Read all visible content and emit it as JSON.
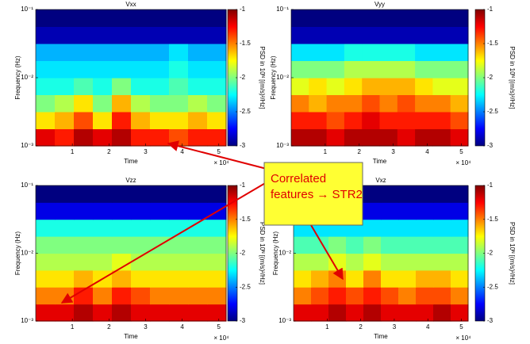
{
  "chart_data": [
    {
      "type": "heatmap",
      "title": "Vxx",
      "xlabel": "Time",
      "ylabel": "Frequency (Hz)",
      "x_multiplier": "× 10⁴",
      "xlim": [
        0,
        5.2
      ],
      "xticks": [
        1,
        2,
        3,
        4,
        5
      ],
      "log_y": true,
      "ylim": [
        0.001,
        0.1
      ],
      "yticks": [
        {
          "value": 0.001,
          "label": "10⁻³"
        },
        {
          "value": 0.01,
          "label": "10⁻²"
        },
        {
          "value": 0.1,
          "label": "10⁻¹"
        }
      ],
      "clim": [
        -3,
        -1
      ],
      "colorbar_ticks": [
        -3,
        -2.5,
        -2,
        -1.5,
        -1
      ],
      "colorbar_label": "PSD in 10ᴺ [(m/s)²/Hz]",
      "x": [
        0.26,
        0.78,
        1.3,
        1.82,
        2.34,
        2.86,
        3.38,
        3.9,
        4.42,
        4.94
      ],
      "y": [
        0.00133,
        0.00237,
        0.00422,
        0.0075,
        0.0133,
        0.0237,
        0.0422,
        0.075
      ],
      "z": [
        [
          -1.2,
          -1.3,
          -1.1,
          -1.2,
          -1.1,
          -1.3,
          -1.3,
          -1.4,
          -1.3,
          -1.3
        ],
        [
          -1.7,
          -1.6,
          -1.4,
          -1.7,
          -1.3,
          -1.6,
          -1.7,
          -1.7,
          -1.6,
          -1.7
        ],
        [
          -2.0,
          -1.9,
          -1.7,
          -2.0,
          -1.6,
          -1.9,
          -2.0,
          -2.0,
          -1.9,
          -2.0
        ],
        [
          -2.2,
          -2.2,
          -2.1,
          -2.2,
          -2.0,
          -2.2,
          -2.2,
          -2.1,
          -2.2,
          -2.2
        ],
        [
          -2.3,
          -2.3,
          -2.3,
          -2.3,
          -2.3,
          -2.3,
          -2.3,
          -2.2,
          -2.3,
          -2.3
        ],
        [
          -2.4,
          -2.4,
          -2.4,
          -2.4,
          -2.4,
          -2.4,
          -2.4,
          -2.3,
          -2.4,
          -2.4
        ],
        [
          -2.9,
          -2.9,
          -2.9,
          -2.9,
          -2.9,
          -2.9,
          -2.9,
          -2.9,
          -2.9,
          -2.9
        ],
        [
          -3,
          -3,
          -3,
          -3,
          -3,
          -3,
          -3,
          -3,
          -3,
          -3
        ]
      ]
    },
    {
      "type": "heatmap",
      "title": "Vyy",
      "xlabel": "Time",
      "ylabel": "Frequency (Hz)",
      "x_multiplier": "× 10⁴",
      "xlim": [
        0,
        5.2
      ],
      "xticks": [
        1,
        2,
        3,
        4,
        5
      ],
      "log_y": true,
      "ylim": [
        0.001,
        0.1
      ],
      "yticks": [
        {
          "value": 0.001,
          "label": "10⁻³"
        },
        {
          "value": 0.01,
          "label": "10⁻²"
        },
        {
          "value": 0.1,
          "label": "10⁻¹"
        }
      ],
      "clim": [
        -3,
        -1
      ],
      "colorbar_ticks": [
        -3,
        -2.5,
        -2,
        -1.5,
        -1
      ],
      "colorbar_label": "PSD in 10ᴺ [(m/s)²/Hz]",
      "x": [
        0.26,
        0.78,
        1.3,
        1.82,
        2.34,
        2.86,
        3.38,
        3.9,
        4.42,
        4.94
      ],
      "y": [
        0.00133,
        0.00237,
        0.00422,
        0.0075,
        0.0133,
        0.0237,
        0.0422,
        0.075
      ],
      "z": [
        [
          -1.1,
          -1.1,
          -1.2,
          -1.1,
          -1.1,
          -1.1,
          -1.2,
          -1.1,
          -1.1,
          -1.2
        ],
        [
          -1.3,
          -1.3,
          -1.4,
          -1.3,
          -1.2,
          -1.3,
          -1.3,
          -1.3,
          -1.3,
          -1.4
        ],
        [
          -1.5,
          -1.6,
          -1.5,
          -1.5,
          -1.4,
          -1.5,
          -1.4,
          -1.5,
          -1.5,
          -1.6
        ],
        [
          -1.8,
          -1.7,
          -1.8,
          -1.7,
          -1.6,
          -1.6,
          -1.6,
          -1.7,
          -1.8,
          -1.8
        ],
        [
          -2.0,
          -2.0,
          -2.0,
          -1.9,
          -1.9,
          -1.9,
          -1.9,
          -2.0,
          -2.0,
          -2.0
        ],
        [
          -2.3,
          -2.3,
          -2.3,
          -2.2,
          -2.2,
          -2.2,
          -2.2,
          -2.3,
          -2.3,
          -2.3
        ],
        [
          -2.9,
          -2.9,
          -2.9,
          -2.9,
          -2.9,
          -2.9,
          -2.9,
          -2.9,
          -2.9,
          -2.9
        ],
        [
          -3,
          -3,
          -3,
          -3,
          -3,
          -3,
          -3,
          -3,
          -3,
          -3
        ]
      ]
    },
    {
      "type": "heatmap",
      "title": "Vzz",
      "xlabel": "Time",
      "ylabel": "Frequency (Hz)",
      "x_multiplier": "× 10⁴",
      "xlim": [
        0,
        5.2
      ],
      "xticks": [
        1,
        2,
        3,
        4,
        5
      ],
      "log_y": true,
      "ylim": [
        0.001,
        0.1
      ],
      "yticks": [
        {
          "value": 0.001,
          "label": "10⁻³"
        },
        {
          "value": 0.01,
          "label": "10⁻²"
        },
        {
          "value": 0.1,
          "label": "10⁻¹"
        }
      ],
      "clim": [
        -3,
        -1
      ],
      "colorbar_ticks": [
        -3,
        -2.5,
        -2,
        -1.5,
        -1
      ],
      "colorbar_label": "PSD in 10ᴺ [(m/s)²/Hz]",
      "x": [
        0.26,
        0.78,
        1.3,
        1.82,
        2.34,
        2.86,
        3.38,
        3.9,
        4.42,
        4.94
      ],
      "y": [
        0.00133,
        0.00237,
        0.00422,
        0.0075,
        0.0133,
        0.0237,
        0.0422,
        0.075
      ],
      "z": [
        [
          -1.2,
          -1.2,
          -1.1,
          -1.2,
          -1.1,
          -1.2,
          -1.2,
          -1.2,
          -1.2,
          -1.2
        ],
        [
          -1.5,
          -1.5,
          -1.3,
          -1.5,
          -1.3,
          -1.4,
          -1.5,
          -1.5,
          -1.5,
          -1.5
        ],
        [
          -1.7,
          -1.7,
          -1.6,
          -1.7,
          -1.6,
          -1.7,
          -1.7,
          -1.7,
          -1.7,
          -1.7
        ],
        [
          -1.9,
          -1.9,
          -1.9,
          -1.9,
          -1.8,
          -1.9,
          -1.9,
          -1.9,
          -1.9,
          -1.9
        ],
        [
          -2.0,
          -2.0,
          -2.0,
          -2.0,
          -2.0,
          -2.0,
          -2.0,
          -2.0,
          -2.0,
          -2.0
        ],
        [
          -2.2,
          -2.2,
          -2.2,
          -2.2,
          -2.2,
          -2.2,
          -2.2,
          -2.2,
          -2.2,
          -2.2
        ],
        [
          -2.8,
          -2.8,
          -2.8,
          -2.8,
          -2.8,
          -2.8,
          -2.8,
          -2.8,
          -2.8,
          -2.8
        ],
        [
          -3,
          -3,
          -3,
          -3,
          -3,
          -3,
          -3,
          -3,
          -3,
          -3
        ]
      ]
    },
    {
      "type": "heatmap",
      "title": "Vxz",
      "xlabel": "Time",
      "ylabel": "Frequency (Hz)",
      "x_multiplier": "× 10⁴",
      "xlim": [
        0,
        5.2
      ],
      "xticks": [
        1,
        2,
        3,
        4,
        5
      ],
      "log_y": true,
      "ylim": [
        0.001,
        0.1
      ],
      "yticks": [
        {
          "value": 0.001,
          "label": "10⁻³"
        },
        {
          "value": 0.01,
          "label": "10⁻²"
        },
        {
          "value": 0.1,
          "label": "10⁻¹"
        }
      ],
      "clim": [
        -3,
        -1
      ],
      "colorbar_ticks": [
        -3,
        -2.5,
        -2,
        -1.5,
        -1
      ],
      "colorbar_label": "PSD in 10ᴺ [(m/s)²/Hz]",
      "x": [
        0.26,
        0.78,
        1.3,
        1.82,
        2.34,
        2.86,
        3.38,
        3.9,
        4.42,
        4.94
      ],
      "y": [
        0.00133,
        0.00237,
        0.00422,
        0.0075,
        0.0133,
        0.0237,
        0.0422,
        0.075
      ],
      "z": [
        [
          -1.2,
          -1.2,
          -1.1,
          -1.2,
          -1.1,
          -1.2,
          -1.2,
          -1.2,
          -1.1,
          -1.2
        ],
        [
          -1.5,
          -1.4,
          -1.3,
          -1.4,
          -1.3,
          -1.4,
          -1.5,
          -1.4,
          -1.4,
          -1.5
        ],
        [
          -1.7,
          -1.6,
          -1.5,
          -1.7,
          -1.5,
          -1.7,
          -1.7,
          -1.6,
          -1.6,
          -1.7
        ],
        [
          -1.9,
          -1.9,
          -1.8,
          -1.9,
          -1.8,
          -1.9,
          -1.9,
          -1.9,
          -1.9,
          -1.9
        ],
        [
          -2.1,
          -2.1,
          -2.0,
          -2.1,
          -2.0,
          -2.1,
          -2.1,
          -2.1,
          -2.1,
          -2.1
        ],
        [
          -2.3,
          -2.3,
          -2.3,
          -2.3,
          -2.3,
          -2.3,
          -2.3,
          -2.3,
          -2.3,
          -2.3
        ],
        [
          -2.8,
          -2.8,
          -2.8,
          -2.8,
          -2.8,
          -2.8,
          -2.8,
          -2.8,
          -2.8,
          -2.8
        ],
        [
          -3,
          -3,
          -3,
          -3,
          -3,
          -3,
          -3,
          -3,
          -3,
          -3
        ]
      ]
    }
  ],
  "annotation": {
    "lines": [
      "Correlated",
      "features → STR2"
    ]
  }
}
